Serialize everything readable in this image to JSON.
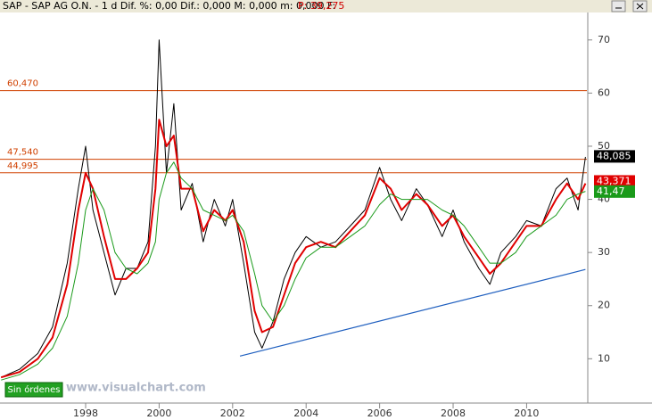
{
  "chart_data": {
    "type": "line",
    "title": "SAP - SAP AG O.N. - 1 d  Dif. %: 0,00  Dif.: 0,000  M: 0,000  m: 0,000  F:",
    "price_label": "P: 39,275",
    "badge": "Sin órdenes",
    "watermark": "www.visualchart.com",
    "xlim": [
      1995.67,
      2011.64
    ],
    "xticks": [
      1998,
      2000,
      2002,
      2004,
      2006,
      2008,
      2010
    ],
    "ylim": [
      2,
      75
    ],
    "yticks": [
      10,
      20,
      30,
      40,
      50,
      60,
      70
    ],
    "x": [
      1995.7,
      1996.2,
      1996.7,
      1997.1,
      1997.5,
      1997.8,
      1998.0,
      1998.2,
      1998.5,
      1998.8,
      1999.1,
      1999.4,
      1999.7,
      1999.9,
      2000.0,
      2000.2,
      2000.4,
      2000.6,
      2000.9,
      2001.2,
      2001.5,
      2001.8,
      2002.0,
      2002.3,
      2002.6,
      2002.8,
      2003.1,
      2003.4,
      2003.7,
      2004.0,
      2004.4,
      2004.8,
      2005.2,
      2005.6,
      2006.0,
      2006.3,
      2006.6,
      2007.0,
      2007.3,
      2007.7,
      2008.0,
      2008.3,
      2008.7,
      2009.0,
      2009.3,
      2009.7,
      2010.0,
      2010.4,
      2010.8,
      2011.1,
      2011.4,
      2011.6
    ],
    "series": [
      {
        "color": "#000000",
        "width": 1,
        "values": [
          6.5,
          8,
          11,
          16,
          28,
          42,
          50,
          38,
          30,
          22,
          27,
          27,
          32,
          50,
          70,
          45,
          58,
          38,
          43,
          32,
          40,
          35,
          40,
          28,
          15,
          12,
          17,
          25,
          30,
          33,
          31,
          32,
          35,
          38,
          46,
          40,
          36,
          42,
          39,
          33,
          38,
          32,
          27,
          24,
          30,
          33,
          36,
          35,
          42,
          44,
          38,
          48
        ]
      },
      {
        "color": "#e00000",
        "width": 2,
        "values": [
          6.5,
          7.5,
          10,
          14,
          24,
          38,
          45,
          42,
          33,
          25,
          25,
          27,
          30,
          42,
          55,
          50,
          52,
          42,
          42,
          34,
          38,
          36,
          38,
          32,
          19,
          15,
          16,
          22,
          28,
          31,
          32,
          31,
          34,
          37,
          44,
          42,
          38,
          41,
          39,
          35,
          37,
          33,
          29,
          26,
          28,
          32,
          35,
          35,
          40,
          43,
          40,
          43
        ]
      },
      {
        "color": "#1a9a1a",
        "width": 1,
        "values": [
          6,
          7,
          9,
          12,
          18,
          28,
          38,
          42,
          38,
          30,
          27,
          26,
          28,
          32,
          40,
          45,
          47,
          44,
          42,
          38,
          37,
          36,
          37,
          34,
          26,
          20,
          17,
          20,
          25,
          29,
          31,
          31,
          33,
          35,
          39,
          41,
          40,
          40,
          40,
          38,
          37,
          35,
          31,
          28,
          28,
          30,
          33,
          35,
          37,
          40,
          41,
          41.5
        ]
      }
    ],
    "hlines": [
      {
        "value": 60.47,
        "label": "60,470"
      },
      {
        "value": 47.54,
        "label": "47,540"
      },
      {
        "value": 44.995,
        "label": "44,995"
      }
    ],
    "hline_color": "#d04000",
    "last_values": [
      {
        "value": 48.085,
        "label": "48,085",
        "color": "#000000"
      },
      {
        "value": 43.371,
        "label": "43,371",
        "color": "#e00000"
      },
      {
        "value": 41.47,
        "label": "41,47",
        "color": "#1a9a1a"
      }
    ],
    "trendline": {
      "x": [
        2002.2,
        2011.6
      ],
      "values": [
        10.5,
        26.8
      ],
      "color": "#1f5fbf"
    }
  }
}
